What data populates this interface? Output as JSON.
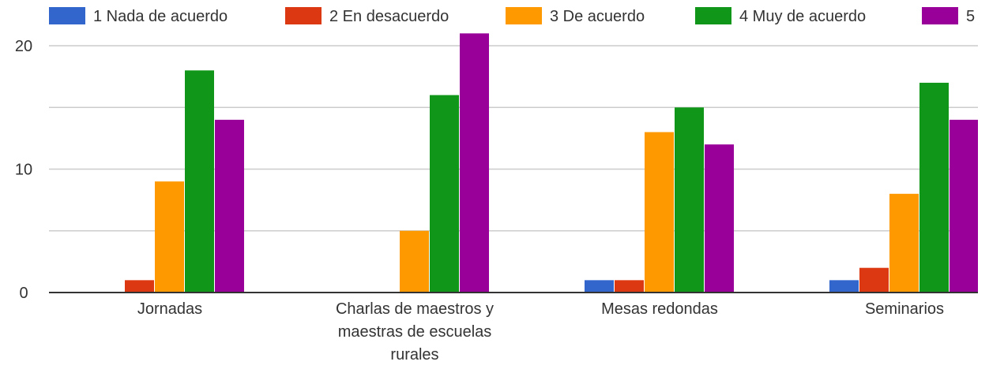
{
  "chart_data": {
    "type": "bar",
    "categories": [
      "Jornadas",
      "Charlas de maestros y maestras de escuelas rurales",
      "Mesas redondas",
      "Seminarios"
    ],
    "category_label_lines": [
      [
        "Jornadas"
      ],
      [
        "Charlas de maestros y",
        "maestras de escuelas",
        "rurales"
      ],
      [
        "Mesas redondas"
      ],
      [
        "Seminarios"
      ]
    ],
    "series": [
      {
        "name": "1 Nada de acuerdo",
        "color": "#3366cc",
        "values": [
          0,
          0,
          1,
          1
        ]
      },
      {
        "name": "2 En desacuerdo",
        "color": "#dc3912",
        "values": [
          1,
          0,
          1,
          2
        ]
      },
      {
        "name": "3 De acuerdo",
        "color": "#ff9900",
        "values": [
          9,
          5,
          13,
          8
        ]
      },
      {
        "name": "4 Muy de acuerdo",
        "color": "#109618",
        "values": [
          18,
          16,
          15,
          17
        ]
      },
      {
        "name": "5",
        "color": "#990099",
        "values": [
          14,
          21,
          12,
          14
        ]
      }
    ],
    "y_ticks": [
      "0",
      "10",
      "20"
    ],
    "ylim": [
      0,
      20
    ],
    "grid": true,
    "legend_position": "top",
    "title": "",
    "xlabel": "",
    "ylabel": ""
  }
}
